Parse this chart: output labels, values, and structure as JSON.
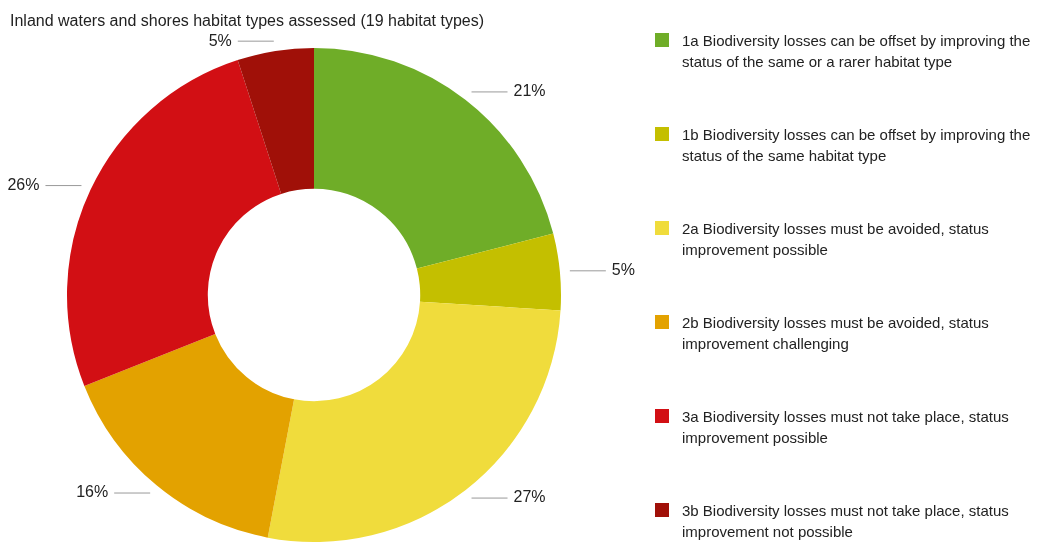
{
  "chart_data": {
    "type": "donut",
    "title": "Inland waters and shores habitat types assessed (19 habitat types)",
    "categories": [
      "1a Biodiversity losses can be offset by improving the status of the same or a rarer habitat type",
      "1b Biodiversity losses can be offset by improving the status of the same habitat type",
      "2a Biodiversity losses must be avoided, status improvement possible",
      "2b Biodiversity losses must be avoided, status improvement challenging",
      "3a Biodiversity losses must not take place, status improvement possible",
      "3b Biodiversity losses must not take place, status improvement not possible"
    ],
    "values": [
      21,
      5,
      27,
      16,
      26,
      5
    ],
    "value_labels": [
      "21%",
      "5%",
      "27%",
      "16%",
      "26%",
      "5%"
    ],
    "colors": [
      "#6fad28",
      "#c4bf00",
      "#f0dc3c",
      "#e3a200",
      "#d20f14",
      "#a01008"
    ],
    "legend": "right"
  }
}
